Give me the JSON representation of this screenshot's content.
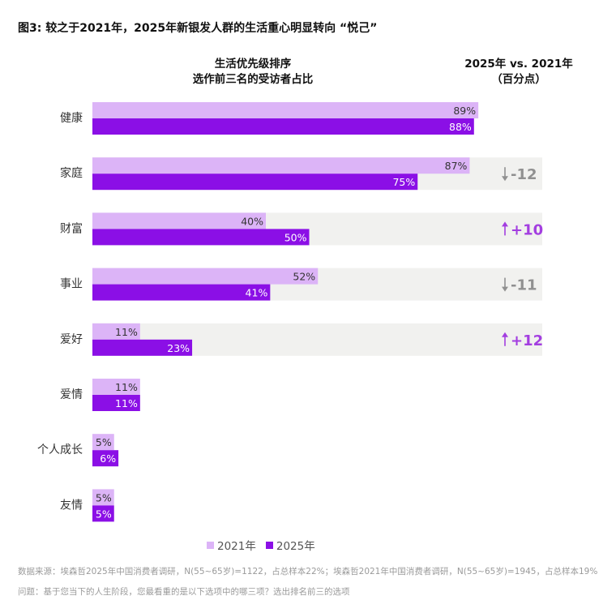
{
  "title": "图3: 较之于2021年，2025年新银发人群的生活重心明显转向 “悦己”",
  "chart_data": {
    "type": "bar",
    "orientation": "horizontal",
    "header_left": [
      "生活优先级排序",
      "选作前三名的受访者占比"
    ],
    "header_right": [
      "2025年 vs. 2021年",
      "（百分点）"
    ],
    "categories": [
      "健康",
      "家庭",
      "财富",
      "事业",
      "爱好",
      "爱情",
      "个人成长",
      "友情"
    ],
    "series": [
      {
        "name": "2021年",
        "values": [
          89,
          87,
          40,
          52,
          11,
          11,
          5,
          5
        ],
        "color": "#dcb4f7"
      },
      {
        "name": "2025年",
        "values": [
          88,
          75,
          50,
          41,
          23,
          11,
          6,
          5
        ],
        "color": "#8b0fe6"
      }
    ],
    "value_labels": {
      "2021": [
        "89%",
        "87%",
        "40%",
        "52%",
        "11%",
        "11%",
        "5%",
        "5%"
      ],
      "2025": [
        "88%",
        "75%",
        "50%",
        "41%",
        "23%",
        "11%",
        "6%",
        "5%"
      ]
    },
    "changes": [
      null,
      "-12",
      "+10",
      "-11",
      "+12",
      null,
      null,
      null
    ],
    "change_direction": [
      null,
      "down",
      "up",
      "down",
      "up",
      null,
      null,
      null
    ],
    "xlim": [
      0,
      100
    ],
    "legend": [
      "2021年",
      "2025年"
    ],
    "colors": {
      "up": "#a33ee0",
      "down": "#909090",
      "band": "#f1f1ef"
    }
  },
  "footnotes": {
    "source": "数据来源：埃森哲2025年中国消费者调研，N(55~65岁)=1122，占总样本22%；埃森哲2021年中国消费者调研，N(55~65岁)=1945，占总样本19%",
    "question": "问题：基于您当下的人生阶段，您最看重的是以下选项中的哪三项？选出排名前三的选项"
  }
}
